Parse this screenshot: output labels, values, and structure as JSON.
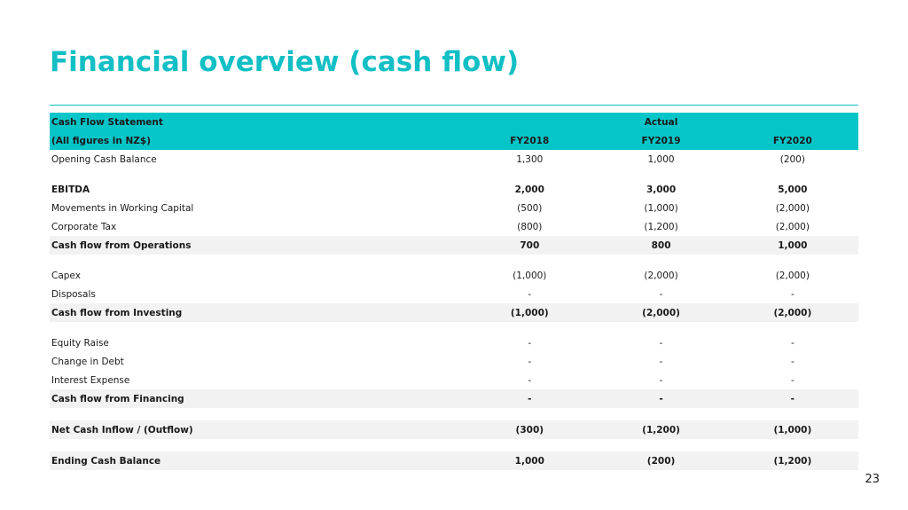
{
  "slide": {
    "title": "Financial overview (cash flow)",
    "page_number": "23"
  },
  "table": {
    "header": {
      "title": "Cash Flow Statement",
      "subtitle": "(All figures in NZ$)",
      "group_label": "Actual",
      "years": [
        "FY2018",
        "FY2019",
        "FY2020"
      ]
    },
    "rows": {
      "opening_cash": {
        "label": "Opening Cash Balance",
        "values": [
          "1,300",
          "1,000",
          "(200)"
        ]
      },
      "ebitda": {
        "label": "EBITDA",
        "values": [
          "2,000",
          "3,000",
          "5,000"
        ]
      },
      "working_capital": {
        "label": "Movements in Working Capital",
        "values": [
          "(500)",
          "(1,000)",
          "(2,000)"
        ]
      },
      "corporate_tax": {
        "label": "Corporate Tax",
        "values": [
          "(800)",
          "(1,200)",
          "(2,000)"
        ]
      },
      "cf_operations": {
        "label": "Cash flow from Operations",
        "values": [
          "700",
          "800",
          "1,000"
        ]
      },
      "capex": {
        "label": "Capex",
        "values": [
          "(1,000)",
          "(2,000)",
          "(2,000)"
        ]
      },
      "disposals": {
        "label": "Disposals",
        "values": [
          "-",
          "-",
          "-"
        ]
      },
      "cf_investing": {
        "label": "Cash flow from Investing",
        "values": [
          "(1,000)",
          "(2,000)",
          "(2,000)"
        ]
      },
      "equity_raise": {
        "label": "Equity Raise",
        "values": [
          "-",
          "-",
          "-"
        ]
      },
      "change_in_debt": {
        "label": "Change in Debt",
        "values": [
          "-",
          "-",
          "-"
        ]
      },
      "interest_expense": {
        "label": "Interest Expense",
        "values": [
          "-",
          "-",
          "-"
        ]
      },
      "cf_financing": {
        "label": "Cash flow from Financing",
        "values": [
          "-",
          "-",
          "-"
        ]
      },
      "net_cash": {
        "label": "Net Cash Inflow / (Outflow)",
        "values": [
          "(300)",
          "(1,200)",
          "(1,000)"
        ]
      },
      "ending_cash": {
        "label": "Ending Cash Balance",
        "values": [
          "1,000",
          "(200)",
          "(1,200)"
        ]
      }
    }
  },
  "colors": {
    "accent": "#12bfc4",
    "header_fill": "#06c5c8",
    "subtotal_fill": "#f2f2f2"
  }
}
